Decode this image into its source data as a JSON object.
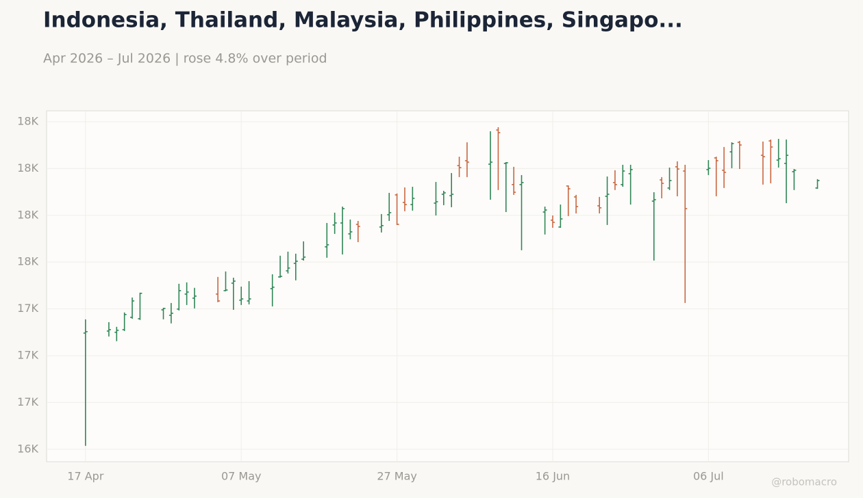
{
  "chart_data": {
    "type": "ohlc",
    "title": "Indonesia, Thailand, Malaysia, Philippines, Singapo...",
    "subtitle": "Apr 2026 – Jul 2026 | rose 4.8% over period",
    "watermark": "@robomacro",
    "x": [
      "2026-04-17",
      "2026-04-20",
      "2026-04-21",
      "2026-04-22",
      "2026-04-23",
      "2026-04-24",
      "2026-04-27",
      "2026-04-28",
      "2026-04-29",
      "2026-04-30",
      "2026-05-01",
      "2026-05-04",
      "2026-05-05",
      "2026-05-06",
      "2026-05-07",
      "2026-05-08",
      "2026-05-11",
      "2026-05-12",
      "2026-05-13",
      "2026-05-14",
      "2026-05-15",
      "2026-05-18",
      "2026-05-19",
      "2026-05-20",
      "2026-05-21",
      "2026-05-22",
      "2026-05-25",
      "2026-05-26",
      "2026-05-27",
      "2026-05-28",
      "2026-05-29",
      "2026-06-01",
      "2026-06-02",
      "2026-06-03",
      "2026-06-04",
      "2026-06-05",
      "2026-06-08",
      "2026-06-09",
      "2026-06-10",
      "2026-06-11",
      "2026-06-12",
      "2026-06-15",
      "2026-06-16",
      "2026-06-17",
      "2026-06-18",
      "2026-06-19",
      "2026-06-22",
      "2026-06-23",
      "2026-06-24",
      "2026-06-25",
      "2026-06-26",
      "2026-06-29",
      "2026-06-30",
      "2026-07-01",
      "2026-07-02",
      "2026-07-03",
      "2026-07-06",
      "2026-07-07",
      "2026-07-08",
      "2026-07-09",
      "2026-07-10",
      "2026-07-13",
      "2026-07-14",
      "2026-07-15",
      "2026-07-16",
      "2026-07-17",
      "2026-07-20"
    ],
    "open": [
      17045,
      17058,
      17050,
      17067,
      17146,
      17137,
      17194,
      17159,
      17199,
      17295,
      17269,
      17295,
      17317,
      17365,
      17256,
      17251,
      17330,
      17405,
      17444,
      17492,
      17519,
      17598,
      17738,
      17751,
      17681,
      17742,
      17725,
      17804,
      17931,
      17883,
      17869,
      17878,
      17935,
      17926,
      18119,
      18150,
      18128,
      18347,
      18133,
      17997,
      17997,
      17821,
      17769,
      17725,
      17988,
      17918,
      17861,
      17922,
      18010,
      17997,
      18067,
      17891,
      18027,
      17975,
      18111,
      18084,
      18093,
      18168,
      18089,
      18207,
      18268,
      18185,
      18277,
      18154,
      18133,
      18080,
      17975
    ],
    "high": [
      17133,
      17115,
      17085,
      17177,
      17273,
      17304,
      17207,
      17238,
      17361,
      17370,
      17335,
      17405,
      17440,
      17400,
      17343,
      17378,
      17422,
      17541,
      17567,
      17554,
      17633,
      17751,
      17817,
      17856,
      17773,
      17764,
      17808,
      17944,
      17940,
      17979,
      17983,
      18014,
      17957,
      18071,
      18176,
      18268,
      18339,
      18365,
      18141,
      18111,
      18058,
      17856,
      17799,
      17869,
      17992,
      17931,
      17918,
      18049,
      18089,
      18124,
      18124,
      17948,
      18045,
      18106,
      18146,
      18124,
      18154,
      18176,
      18238,
      18268,
      18277,
      18273,
      18286,
      18290,
      18286,
      18097,
      18032
    ],
    "low": [
      16322,
      17023,
      16993,
      17058,
      17137,
      17129,
      17133,
      17107,
      17190,
      17225,
      17203,
      17243,
      17313,
      17194,
      17225,
      17229,
      17216,
      17400,
      17427,
      17383,
      17510,
      17528,
      17681,
      17549,
      17646,
      17628,
      17690,
      17764,
      17738,
      17826,
      17830,
      17799,
      17865,
      17852,
      18045,
      18045,
      17900,
      17962,
      17821,
      17931,
      17576,
      17677,
      17720,
      17720,
      17795,
      17812,
      17812,
      17738,
      17962,
      17983,
      17869,
      17510,
      17909,
      17962,
      17922,
      17238,
      18058,
      17922,
      17975,
      18102,
      18097,
      17997,
      18005,
      18106,
      17878,
      17962,
      17970
    ],
    "close": [
      17054,
      17067,
      17063,
      17164,
      17251,
      17300,
      17203,
      17172,
      17317,
      17308,
      17282,
      17251,
      17321,
      17378,
      17264,
      17264,
      17339,
      17409,
      17462,
      17506,
      17532,
      17611,
      17751,
      17843,
      17694,
      17729,
      17734,
      17817,
      17742,
      17869,
      17909,
      17887,
      17944,
      17935,
      18106,
      18141,
      18141,
      18330,
      18137,
      17948,
      18010,
      17834,
      17755,
      17777,
      17970,
      17856,
      17848,
      17935,
      17997,
      18084,
      18093,
      17900,
      18005,
      18023,
      18097,
      17843,
      18102,
      18150,
      18076,
      18260,
      18251,
      18176,
      18238,
      18163,
      18185,
      18089,
      18023
    ],
    "up_color": "#2e8555",
    "down_color": "#c8663f",
    "xlim": [
      "2026-04-12",
      "2026-07-24"
    ],
    "xticks": [
      {
        "value": "2026-04-17",
        "label": "17 Apr"
      },
      {
        "value": "2026-05-07",
        "label": "07 May"
      },
      {
        "value": "2026-05-27",
        "label": "27 May"
      },
      {
        "value": "2026-06-16",
        "label": "16 Jun"
      },
      {
        "value": "2026-07-06",
        "label": "06 Jul"
      }
    ],
    "ylim": [
      16220,
      18470
    ],
    "yticks": [
      {
        "value": 16300,
        "label": "16K"
      },
      {
        "value": 16600,
        "label": "17K"
      },
      {
        "value": 16900,
        "label": "17K"
      },
      {
        "value": 17200,
        "label": "17K"
      },
      {
        "value": 17500,
        "label": "18K"
      },
      {
        "value": 17800,
        "label": "18K"
      },
      {
        "value": 18100,
        "label": "18K"
      },
      {
        "value": 18400,
        "label": "18K"
      }
    ],
    "grid": true
  }
}
